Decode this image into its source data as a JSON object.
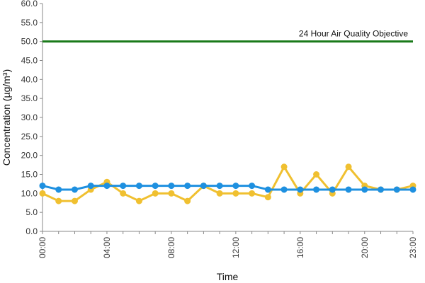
{
  "chart_data": {
    "type": "line",
    "title": "",
    "xlabel": "Time",
    "ylabel": "Concentration (µg/m³)",
    "ylim": [
      0,
      60
    ],
    "yticks": [
      "0.0",
      "5.0",
      "10.0",
      "15.0",
      "20.0",
      "25.0",
      "30.0",
      "35.0",
      "40.0",
      "45.0",
      "50.0",
      "55.0",
      "60.0"
    ],
    "xlim": [
      0,
      23
    ],
    "xticks": [
      {
        "hour": 0,
        "label": "00:00"
      },
      {
        "hour": 4,
        "label": "04:00"
      },
      {
        "hour": 8,
        "label": "08:00"
      },
      {
        "hour": 12,
        "label": "12:00"
      },
      {
        "hour": 16,
        "label": "16:00"
      },
      {
        "hour": 20,
        "label": "20:00"
      },
      {
        "hour": 23,
        "label": "23:00"
      }
    ],
    "x": [
      0,
      1,
      2,
      3,
      4,
      5,
      6,
      7,
      8,
      9,
      10,
      11,
      12,
      13,
      14,
      15,
      16,
      17,
      18,
      19,
      20,
      21,
      22,
      23
    ],
    "series": [
      {
        "color": "#f0c030",
        "values": [
          10,
          8,
          8,
          11,
          13,
          10,
          8,
          10,
          10,
          8,
          12,
          10,
          10,
          10,
          9,
          17,
          10,
          15,
          10,
          17,
          12,
          11,
          11,
          12
        ]
      },
      {
        "color": "#1e90e0",
        "values": [
          12,
          11,
          11,
          12,
          12,
          12,
          12,
          12,
          12,
          12,
          12,
          12,
          12,
          12,
          11,
          11,
          11,
          11,
          11,
          11,
          11,
          11,
          11,
          11
        ]
      }
    ],
    "reference_line": {
      "value": 50,
      "label": "24 Hour Air Quality Objective",
      "color": "#1a7a1a"
    },
    "grid": false,
    "legend": false
  }
}
